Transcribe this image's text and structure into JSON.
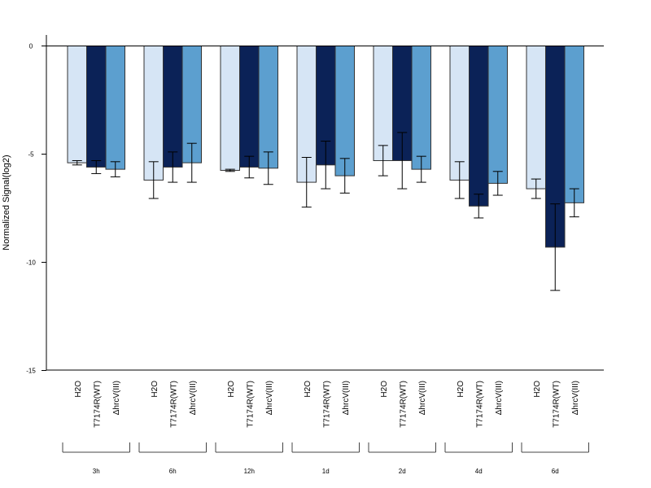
{
  "chart_data": {
    "type": "bar",
    "ylabel": "Normalized Signal(log2)",
    "ylim": [
      -15,
      0.5
    ],
    "yticks": [
      0,
      -5,
      -10,
      -15
    ],
    "groups": [
      "3h",
      "6h",
      "12h",
      "1d",
      "2d",
      "4d",
      "6d"
    ],
    "bar_labels": [
      "H2O",
      "T7174R(WT)",
      "ΔhrcV(III)"
    ],
    "series": [
      {
        "name": "H2O",
        "color": "#d6e5f5",
        "values": [
          -5.4,
          -6.2,
          -5.75,
          -6.3,
          -5.3,
          -6.2,
          -6.6
        ],
        "errors": [
          0.1,
          0.85,
          0.05,
          1.15,
          0.7,
          0.85,
          0.45
        ]
      },
      {
        "name": "T7174R(WT)",
        "color": "#0b2257",
        "values": [
          -5.6,
          -5.6,
          -5.6,
          -5.5,
          -5.3,
          -7.4,
          -9.3
        ],
        "errors": [
          0.3,
          0.7,
          0.5,
          1.1,
          1.3,
          0.55,
          2.0
        ]
      },
      {
        "name": "ΔhrcV(III)",
        "color": "#5c9fcf",
        "values": [
          -5.7,
          -5.4,
          -5.65,
          -6.0,
          -5.7,
          -6.35,
          -7.25
        ],
        "errors": [
          0.35,
          0.9,
          0.75,
          0.8,
          0.6,
          0.55,
          0.65
        ]
      }
    ]
  }
}
